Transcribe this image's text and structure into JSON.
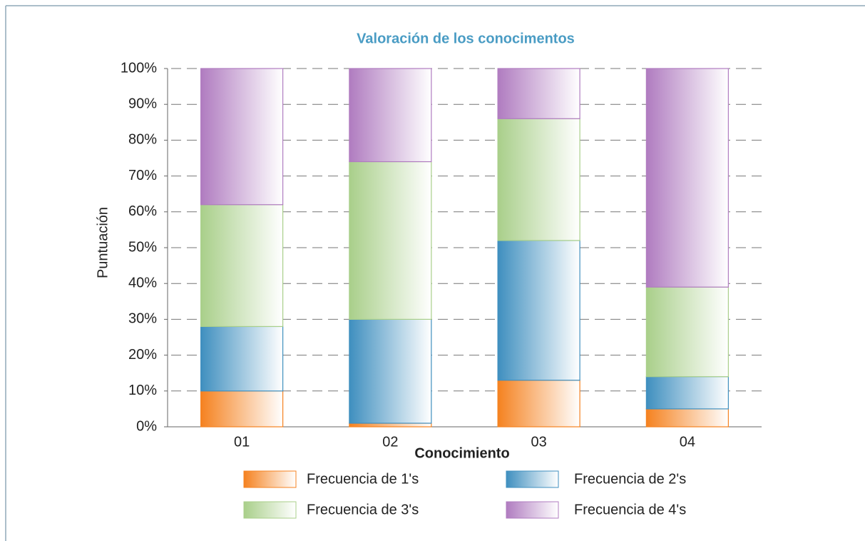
{
  "chart_data": {
    "type": "bar",
    "stacked": true,
    "title": "Valoración de los conocimentos",
    "x_label": "Conocimiento",
    "y_label": "Puntuación",
    "categories": [
      "01",
      "02",
      "03",
      "04"
    ],
    "series": [
      {
        "name": "Frecuencia de 1's",
        "color": "#f58220",
        "values": [
          10,
          1,
          13,
          5
        ]
      },
      {
        "name": "Frecuencia de 2's",
        "color": "#3f8fbf",
        "values": [
          18,
          29,
          39,
          9
        ]
      },
      {
        "name": "Frecuencia de 3's",
        "color": "#a9cf8a",
        "values": [
          34,
          44,
          34,
          25
        ]
      },
      {
        "name": "Frecuencia de 4's",
        "color": "#b07cc0",
        "values": [
          38,
          26,
          14,
          61
        ]
      }
    ],
    "ylim": [
      0,
      100
    ],
    "yticks": [
      {
        "value": 0,
        "label": "0%"
      },
      {
        "value": 10,
        "label": "10%"
      },
      {
        "value": 20,
        "label": "20%"
      },
      {
        "value": 30,
        "label": "30%"
      },
      {
        "value": 40,
        "label": "40%"
      },
      {
        "value": 50,
        "label": "50%"
      },
      {
        "value": 60,
        "label": "60%"
      },
      {
        "value": 70,
        "label": "70%"
      },
      {
        "value": 80,
        "label": "80%"
      },
      {
        "value": 90,
        "label": "90%"
      },
      {
        "value": 100,
        "label": "100%"
      }
    ],
    "grid": true,
    "legend": "bottom"
  }
}
